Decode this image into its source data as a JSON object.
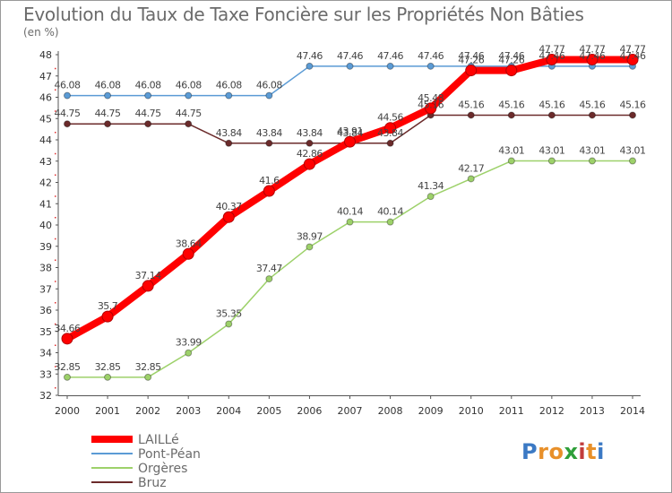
{
  "title": "Evolution du Taux de Taxe Foncière sur les Propriétés Non Bâties",
  "unit_label": "(en %)",
  "logo": {
    "text": "Proxiti",
    "letters": [
      "P",
      "r",
      "o",
      "x",
      "i",
      "t",
      "i"
    ],
    "colors": [
      "#3b79c4",
      "#e8902a",
      "#e8902a",
      "#2f9f3a",
      "#c23c3c",
      "#e8902a",
      "#3b79c4"
    ]
  },
  "chart_data": {
    "type": "line",
    "x": [
      2000,
      2001,
      2002,
      2003,
      2004,
      2005,
      2006,
      2007,
      2008,
      2009,
      2010,
      2011,
      2012,
      2013,
      2014
    ],
    "ylim": [
      32,
      48
    ],
    "yticks": [
      32,
      33,
      34,
      35,
      36,
      37,
      38,
      39,
      40,
      41,
      42,
      43,
      44,
      45,
      46,
      47,
      48
    ],
    "grid": false,
    "legend": "bottom-left",
    "series": [
      {
        "name": "Pont-Péan",
        "color": "#5b9bd5",
        "width": 1.5,
        "marker": 3.5,
        "bold": false,
        "values": [
          46.08,
          46.08,
          46.08,
          46.08,
          46.08,
          46.08,
          47.46,
          47.46,
          47.46,
          47.46,
          47.46,
          47.46,
          47.46,
          47.46,
          47.46
        ],
        "labels": [
          "46.08",
          "46.08",
          "46.08",
          "46.08",
          "46.08",
          "46.08",
          "47.46",
          "47.46",
          "47.46",
          "47.46",
          "47.46",
          "47.46",
          "47.46",
          "47.46",
          "47.46"
        ]
      },
      {
        "name": "Orgères",
        "color": "#9dd16a",
        "width": 1.5,
        "marker": 3.5,
        "bold": false,
        "values": [
          32.85,
          32.85,
          32.85,
          33.99,
          35.35,
          37.47,
          38.97,
          40.14,
          40.14,
          41.34,
          42.17,
          43.01,
          43.01,
          43.01,
          43.01
        ],
        "labels": [
          "32.85",
          "32.85",
          "32.85",
          "33.99",
          "35.35",
          "37.47",
          "38.97",
          "40.14",
          "40.14",
          "41.34",
          "42.17",
          "43.01",
          "43.01",
          "43.01",
          "43.01"
        ]
      },
      {
        "name": "Bruz",
        "color": "#6b2b2b",
        "width": 1.5,
        "marker": 3.5,
        "bold": false,
        "values": [
          44.75,
          44.75,
          44.75,
          44.75,
          43.84,
          43.84,
          43.84,
          43.84,
          43.84,
          45.16,
          45.16,
          45.16,
          45.16,
          45.16,
          45.16
        ],
        "labels": [
          "44.75",
          "44.75",
          "44.75",
          "44.75",
          "43.84",
          "43.84",
          "43.84",
          "43.84",
          "43.84",
          "45.16",
          "45.16",
          "45.16",
          "45.16",
          "45.16",
          "45.16"
        ]
      },
      {
        "name": "LAILLé",
        "color": "#ff0000",
        "width": 8,
        "marker": 6,
        "bold": true,
        "values": [
          34.66,
          35.7,
          37.14,
          38.64,
          40.37,
          41.6,
          42.86,
          43.91,
          44.56,
          45.48,
          47.26,
          47.26,
          47.77,
          47.77,
          47.77
        ],
        "labels": [
          "34.66",
          "35.7",
          "37.14",
          "38.64",
          "40.37",
          "41.6",
          "42.86",
          "43.91",
          "44.56",
          "45.48",
          "47.26",
          "47.26",
          "47.77",
          "47.77",
          "47.77"
        ]
      }
    ],
    "legend_order": [
      "LAILLé",
      "Pont-Péan",
      "Orgères",
      "Bruz"
    ]
  }
}
